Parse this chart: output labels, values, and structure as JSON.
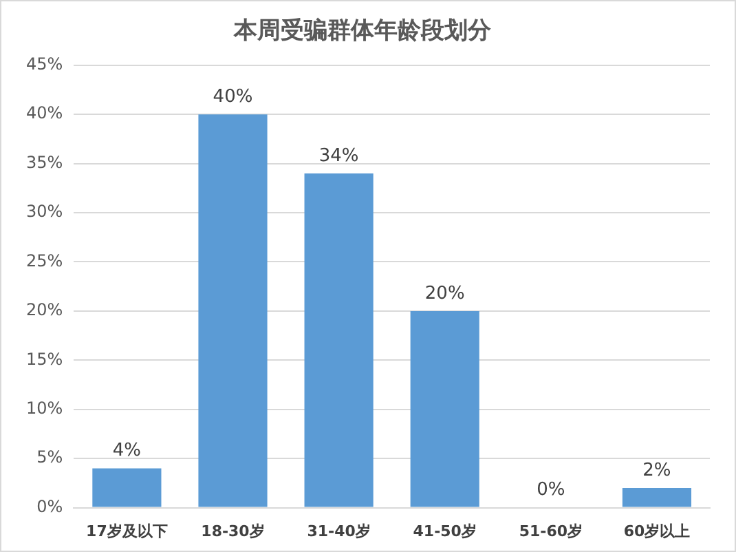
{
  "chart_data": {
    "type": "bar",
    "title": "本周受骗群体年龄段划分",
    "categories": [
      "17岁及以下",
      "18-30岁",
      "31-40岁",
      "41-50岁",
      "51-60岁",
      "60岁以上"
    ],
    "values": [
      4,
      40,
      34,
      20,
      0,
      2
    ],
    "value_labels": [
      "4%",
      "40%",
      "34%",
      "20%",
      "0%",
      "2%"
    ],
    "color": "#5b9bd5",
    "ylim": [
      0,
      45
    ],
    "yticks": [
      {
        "value": 0,
        "label": "0%"
      },
      {
        "value": 5,
        "label": "5%"
      },
      {
        "value": 10,
        "label": "10%"
      },
      {
        "value": 15,
        "label": "15%"
      },
      {
        "value": 20,
        "label": "20%"
      },
      {
        "value": 25,
        "label": "25%"
      },
      {
        "value": 30,
        "label": "30%"
      },
      {
        "value": 35,
        "label": "35%"
      },
      {
        "value": 40,
        "label": "40%"
      },
      {
        "value": 45,
        "label": "45%"
      }
    ],
    "grid": "y"
  }
}
